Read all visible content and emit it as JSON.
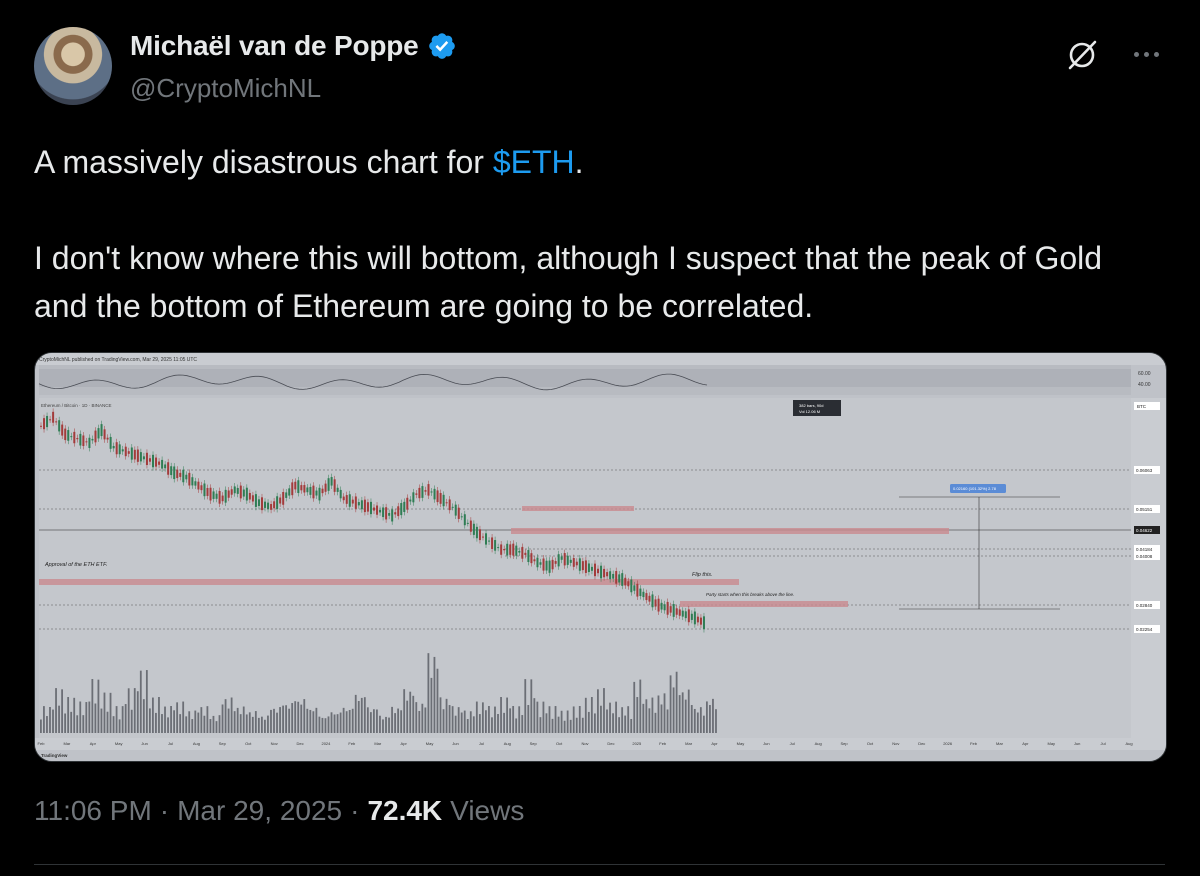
{
  "author": {
    "display_name": "Michaël van de Poppe",
    "handle": "@CryptoMichNL",
    "verified_icon": "verified-badge-icon"
  },
  "post": {
    "text_prefix": "A massively disastrous chart for ",
    "cashtag": "$ETH",
    "text_suffix": ".",
    "paragraph2": "I don't know where this will bottom, although I suspect that the peak of Gold and the bottom of Ethereum are going to be correlated."
  },
  "meta": {
    "time": "11:06 PM",
    "sep1": "·",
    "date": "Mar 29, 2025",
    "sep2": "·",
    "views_count": "72.4K",
    "views_label": "Views"
  },
  "chart": {
    "header_text": "CryptoMichNL published on TradingView.com, Mar 29, 2025 11:05 UTC",
    "symbol_text": "Ethereum / Bitcoin · 1D · BINANCE",
    "annotation_etf": "Approval of the ETH ETF.",
    "annotation_flip": "Flip this.",
    "annotation_party": "Party starts when this breaks above the line.",
    "bars_info": "382 bars, 90d",
    "vol_info": "Vol 12.06 M",
    "measure_label": "0.02160 (101.32%) 2.78",
    "right_top_label": "BTC",
    "price_labels": [
      "0.06063",
      "0.05151",
      "0.04622",
      "0.04184",
      "0.04008",
      "0.02840",
      "0.02254"
    ],
    "osc_labels": [
      "60.00",
      "40.00"
    ],
    "x_labels": [
      "Feb",
      "Mar",
      "Apr",
      "May",
      "Jun",
      "Jul",
      "Aug",
      "Sep",
      "Oct",
      "Nov",
      "Dec",
      "2024",
      "Feb",
      "Mar",
      "Apr",
      "May",
      "Jun",
      "Jul",
      "Aug",
      "Sep",
      "Oct",
      "Nov",
      "Dec",
      "2025",
      "Feb",
      "Mar",
      "Apr",
      "May",
      "Jun",
      "Jul",
      "Aug",
      "Sep",
      "Oct",
      "Nov",
      "Dec",
      "2026",
      "Feb",
      "Mar",
      "Apr",
      "May",
      "Jun",
      "Jul",
      "Aug"
    ],
    "footer_logo": "TradingView",
    "price_path": [
      0.069,
      0.071,
      0.067,
      0.066,
      0.065,
      0.068,
      0.064,
      0.063,
      0.062,
      0.061,
      0.06,
      0.058,
      0.057,
      0.055,
      0.053,
      0.052,
      0.054,
      0.053,
      0.051,
      0.05,
      0.052,
      0.055,
      0.054,
      0.053,
      0.056,
      0.052,
      0.051,
      0.05,
      0.049,
      0.048,
      0.05,
      0.053,
      0.054,
      0.052,
      0.05,
      0.047,
      0.044,
      0.042,
      0.04,
      0.04,
      0.039,
      0.037,
      0.036,
      0.038,
      0.037,
      0.036,
      0.035,
      0.034,
      0.033,
      0.031,
      0.029,
      0.027,
      0.026,
      0.025,
      0.024,
      0.0225
    ],
    "volumes": [
      0.3,
      0.5,
      0.4,
      0.35,
      0.6,
      0.45,
      0.3,
      0.5,
      0.7,
      0.4,
      0.3,
      0.35,
      0.25,
      0.3,
      0.2,
      0.4,
      0.3,
      0.25,
      0.2,
      0.3,
      0.35,
      0.4,
      0.3,
      0.2,
      0.25,
      0.3,
      0.45,
      0.3,
      0.2,
      0.3,
      0.5,
      0.35,
      0.9,
      0.4,
      0.3,
      0.25,
      0.35,
      0.3,
      0.4,
      0.3,
      0.6,
      0.35,
      0.3,
      0.25,
      0.3,
      0.4,
      0.5,
      0.35,
      0.3,
      0.6,
      0.4,
      0.45,
      0.7,
      0.5,
      0.3,
      0.4
    ]
  }
}
